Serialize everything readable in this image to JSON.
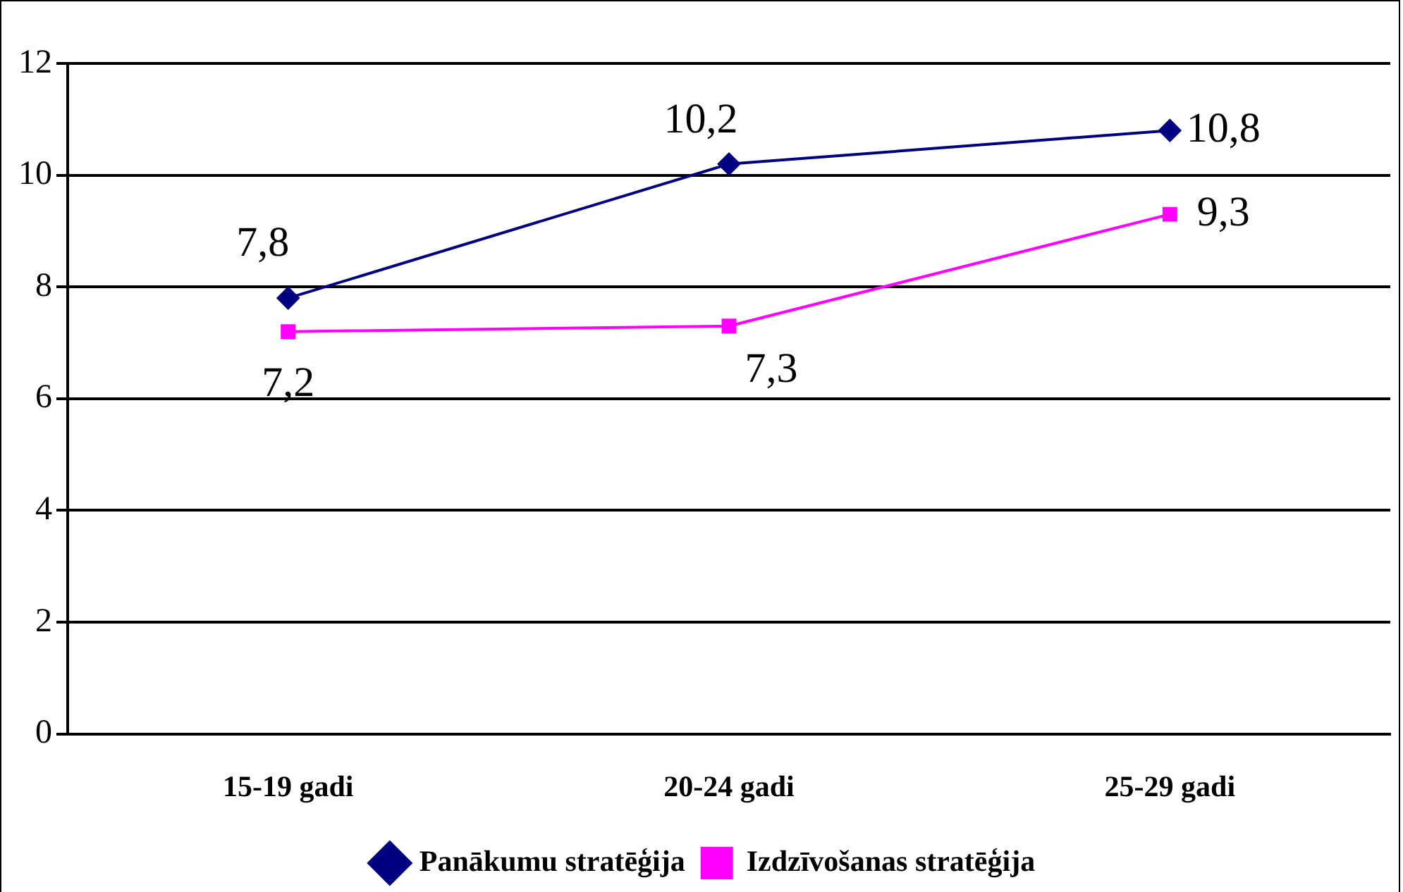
{
  "chart_data": {
    "type": "line",
    "categories": [
      "15-19 gadi",
      "20-24 gadi",
      "25-29 gadi"
    ],
    "series": [
      {
        "name": "Panākumu stratēģija",
        "color": "#000080",
        "marker": "diamond",
        "values": [
          7.8,
          10.2,
          10.8
        ],
        "value_labels": [
          "7,8",
          "10,2",
          "10,8"
        ]
      },
      {
        "name": "Izdzīvošanas stratēģija",
        "color": "#ff00ff",
        "marker": "square",
        "values": [
          7.2,
          7.3,
          9.3
        ],
        "value_labels": [
          "7,2",
          "7,3",
          "9,3"
        ]
      }
    ],
    "ylim": [
      0,
      12
    ],
    "yticks": [
      0,
      2,
      4,
      6,
      8,
      10,
      12
    ],
    "grid": "y",
    "legend": "bottom"
  }
}
